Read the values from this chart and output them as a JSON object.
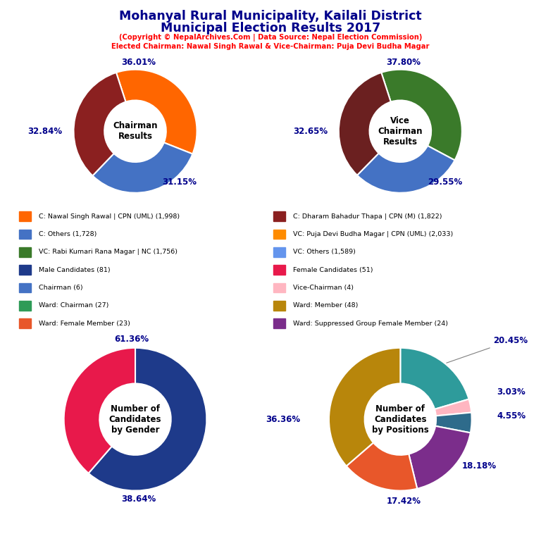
{
  "title_line1": "Mohanyal Rural Municipality, Kailali District",
  "title_line2": "Municipal Election Results 2017",
  "subtitle1": "(Copyright © NepalArchives.Com | Data Source: Nepal Election Commission)",
  "subtitle2": "Elected Chairman: Nawal Singh Rawal & Vice-Chairman: Puja Devi Budha Magar",
  "chairman": {
    "label": "Chairman\nResults",
    "values": [
      36.01,
      31.15,
      32.84
    ],
    "colors": [
      "#FF6600",
      "#4472C4",
      "#8B2020"
    ],
    "startangle": 90
  },
  "vice_chairman": {
    "label": "Vice\nChairman\nResults",
    "values": [
      37.8,
      29.55,
      32.65
    ],
    "colors": [
      "#3A7A2A",
      "#4472C4",
      "#6B2020"
    ],
    "startangle": 90
  },
  "gender": {
    "label": "Number of\nCandidates\nby Gender",
    "values": [
      61.36,
      38.64
    ],
    "colors": [
      "#1E3A8A",
      "#E8194B"
    ],
    "startangle": 90
  },
  "positions": {
    "label": "Number of\nCandidates\nby Positions",
    "values": [
      20.45,
      3.03,
      4.55,
      18.18,
      17.42,
      36.36
    ],
    "colors": [
      "#2E9B9B",
      "#FFB6C1",
      "#2E6B8B",
      "#7B2D8B",
      "#E8572A",
      "#B8860B"
    ],
    "startangle": 90
  },
  "legend_left": [
    {
      "label": "C: Nawal Singh Rawal | CPN (UML) (1,998)",
      "color": "#FF6600"
    },
    {
      "label": "C: Others (1,728)",
      "color": "#4472C4"
    },
    {
      "label": "VC: Rabi Kumari Rana Magar | NC (1,756)",
      "color": "#3A7A2A"
    },
    {
      "label": "Male Candidates (81)",
      "color": "#1E3A8A"
    },
    {
      "label": "Chairman (6)",
      "color": "#4472C4"
    },
    {
      "label": "Ward: Chairman (27)",
      "color": "#2E9B57"
    },
    {
      "label": "Ward: Female Member (23)",
      "color": "#E8572A"
    }
  ],
  "legend_right": [
    {
      "label": "C: Dharam Bahadur Thapa | CPN (M) (1,822)",
      "color": "#8B2020"
    },
    {
      "label": "VC: Puja Devi Budha Magar | CPN (UML) (2,033)",
      "color": "#FF8C00"
    },
    {
      "label": "VC: Others (1,589)",
      "color": "#6495ED"
    },
    {
      "label": "Female Candidates (51)",
      "color": "#E8194B"
    },
    {
      "label": "Vice-Chairman (4)",
      "color": "#FFB6C1"
    },
    {
      "label": "Ward: Member (48)",
      "color": "#B8860B"
    },
    {
      "label": "Ward: Suppressed Group Female Member (24)",
      "color": "#7B2D8B"
    }
  ]
}
